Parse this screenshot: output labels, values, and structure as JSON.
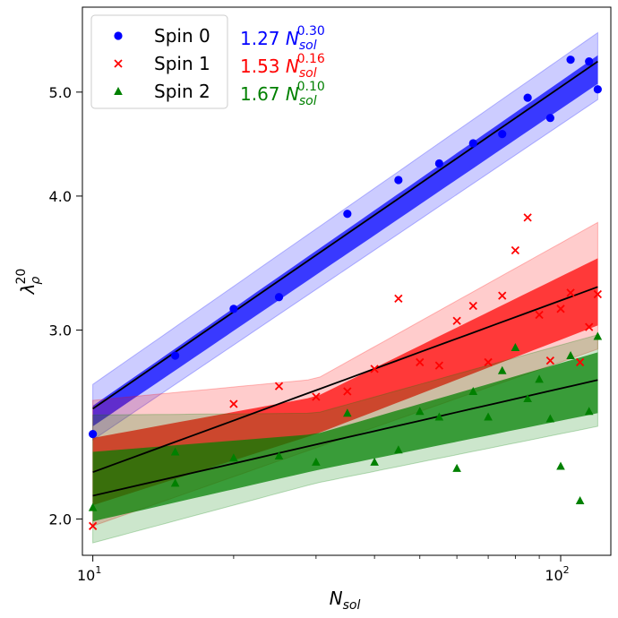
{
  "chart_data": {
    "type": "scatter",
    "title": "",
    "xlabel": "N",
    "xlabel_sub": "sol",
    "ylabel": "λ",
    "ylabel_sup": "20",
    "ylabel_sub": "ρ",
    "x_scale": "log",
    "y_scale": "log",
    "xlim": [
      9.5,
      128
    ],
    "ylim": [
      1.85,
      6.0
    ],
    "x_ticks": [
      {
        "value": 10,
        "base": "10",
        "exp": "1"
      },
      {
        "value": 100,
        "base": "10",
        "exp": "2"
      }
    ],
    "y_ticks": [
      {
        "value": 2.0,
        "label": "2.0"
      },
      {
        "value": 3.0,
        "label": "3.0"
      },
      {
        "value": 4.0,
        "label": "4.0"
      },
      {
        "value": 5.0,
        "label": "5.0"
      }
    ],
    "grid": false,
    "legend_position": "upper-left",
    "series": [
      {
        "name": "Spin 0",
        "color": "#0000ff",
        "marker": "circle",
        "fit": {
          "coef": 1.27,
          "exp": 0.3,
          "label_coef": "1.27",
          "label_exp": "0.30"
        },
        "inner_band": [
          [
            10,
            2.44,
            2.55
          ],
          [
            120,
            5.09,
            5.41
          ]
        ],
        "outer_band": [
          [
            10,
            2.37,
            2.67
          ],
          [
            120,
            4.92,
            5.68
          ]
        ],
        "points": [
          [
            10,
            2.4
          ],
          [
            15,
            2.84
          ],
          [
            20,
            3.14
          ],
          [
            25,
            3.22
          ],
          [
            35,
            3.85
          ],
          [
            45,
            4.14
          ],
          [
            55,
            4.29
          ],
          [
            65,
            4.48
          ],
          [
            75,
            4.57
          ],
          [
            85,
            4.94
          ],
          [
            95,
            4.73
          ],
          [
            105,
            5.36
          ],
          [
            115,
            5.34
          ],
          [
            120,
            5.03
          ]
        ]
      },
      {
        "name": "Spin 1",
        "color": "#ff0000",
        "marker": "x",
        "fit": {
          "coef": 1.53,
          "exp": 0.16,
          "label_coef": "1.53",
          "label_exp": "0.16"
        },
        "inner_band": [
          [
            10,
            2.06,
            2.38
          ],
          [
            30,
            2.4,
            2.6
          ],
          [
            120,
            3.03,
            3.5
          ]
        ],
        "outer_band": [
          [
            10,
            1.97,
            2.58
          ],
          [
            30,
            2.33,
            2.7
          ],
          [
            120,
            2.88,
            3.78
          ]
        ],
        "points": [
          [
            10,
            1.97
          ],
          [
            20,
            2.56
          ],
          [
            25,
            2.66
          ],
          [
            30,
            2.6
          ],
          [
            35,
            2.63
          ],
          [
            40,
            2.76
          ],
          [
            45,
            3.21
          ],
          [
            50,
            2.8
          ],
          [
            55,
            2.78
          ],
          [
            60,
            3.06
          ],
          [
            65,
            3.16
          ],
          [
            70,
            2.8
          ],
          [
            75,
            3.23
          ],
          [
            80,
            3.56
          ],
          [
            85,
            3.82
          ],
          [
            90,
            3.1
          ],
          [
            95,
            2.81
          ],
          [
            100,
            3.14
          ],
          [
            105,
            3.25
          ],
          [
            110,
            2.8
          ],
          [
            115,
            3.02
          ],
          [
            120,
            3.24
          ]
        ]
      },
      {
        "name": "Spin 2",
        "color": "#008000",
        "marker": "triangle",
        "fit": {
          "coef": 1.67,
          "exp": 0.1,
          "label_coef": "1.67",
          "label_exp": "0.10"
        },
        "inner_band": [
          [
            10,
            1.99,
            2.31
          ],
          [
            30,
            2.22,
            2.4
          ],
          [
            120,
            2.51,
            2.86
          ]
        ],
        "outer_band": [
          [
            10,
            1.9,
            2.5
          ],
          [
            30,
            2.16,
            2.51
          ],
          [
            120,
            2.44,
            2.97
          ]
        ],
        "points": [
          [
            10,
            2.05
          ],
          [
            15,
            2.16
          ],
          [
            15,
            2.31
          ],
          [
            20,
            2.28
          ],
          [
            25,
            2.29
          ],
          [
            30,
            2.26
          ],
          [
            35,
            2.51
          ],
          [
            40,
            2.26
          ],
          [
            45,
            2.32
          ],
          [
            50,
            2.52
          ],
          [
            55,
            2.49
          ],
          [
            60,
            2.23
          ],
          [
            65,
            2.63
          ],
          [
            70,
            2.49
          ],
          [
            75,
            2.75
          ],
          [
            80,
            2.89
          ],
          [
            85,
            2.59
          ],
          [
            90,
            2.7
          ],
          [
            95,
            2.48
          ],
          [
            100,
            2.24
          ],
          [
            105,
            2.84
          ],
          [
            110,
            2.08
          ],
          [
            115,
            2.52
          ],
          [
            120,
            2.96
          ]
        ]
      }
    ]
  }
}
